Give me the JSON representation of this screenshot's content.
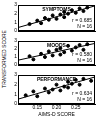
{
  "chart_data": [
    {
      "type": "scatter",
      "title": "SYMPTOMS",
      "annotations": [
        "r = 0.685",
        "N = 16"
      ],
      "xlim": [
        0.1,
        0.3
      ],
      "xticks": [
        0.15,
        {
          "value": 0.2,
          "label": "0.20"
        },
        0.25
      ],
      "ylim": [
        0,
        3
      ],
      "yticks": [
        0,
        1,
        2,
        3
      ],
      "grid": false,
      "tick_labels": "y",
      "series": [
        {
          "color": "#000000",
          "marker": "circle",
          "x": [
            0.13,
            0.15,
            0.16,
            0.17,
            0.18,
            0.19,
            0.2,
            0.21,
            0.22,
            0.22,
            0.23,
            0.24,
            0.25,
            0.26,
            0.27,
            0.28
          ],
          "values": [
            0.8,
            1.2,
            0.9,
            1.5,
            1.3,
            1.8,
            1.4,
            1.9,
            1.6,
            2.2,
            2.0,
            2.4,
            2.1,
            2.6,
            2.3,
            2.7
          ]
        },
        {
          "type": "line",
          "color": "#000000",
          "line_style": "solid",
          "x": [
            0.1,
            0.3
          ],
          "values": [
            0.4,
            2.9
          ]
        }
      ]
    },
    {
      "type": "scatter",
      "title": "MOODS",
      "annotations": [
        "r = 0.580",
        "N = 16"
      ],
      "y_label": "TRANSFORMED SCORE",
      "xlim": [
        0.1,
        0.3
      ],
      "xticks": [
        0.15,
        {
          "value": 0.2,
          "label": "0.20"
        },
        0.25
      ],
      "ylim": [
        0,
        3
      ],
      "yticks": [
        0,
        1,
        2,
        3
      ],
      "grid": false,
      "tick_labels": "y",
      "series": [
        {
          "color": "#000000",
          "marker": "circle",
          "x": [
            0.13,
            0.14,
            0.16,
            0.17,
            0.18,
            0.19,
            0.2,
            0.21,
            0.21,
            0.22,
            0.23,
            0.24,
            0.25,
            0.26,
            0.27,
            0.28
          ],
          "values": [
            1.1,
            0.7,
            1.4,
            1.0,
            1.7,
            1.2,
            1.9,
            1.3,
            2.1,
            1.6,
            2.4,
            1.8,
            2.2,
            2.5,
            1.9,
            2.6
          ]
        },
        {
          "type": "line",
          "color": "#000000",
          "line_style": "solid",
          "x": [
            0.1,
            0.3
          ],
          "values": [
            0.6,
            2.7
          ]
        }
      ]
    },
    {
      "type": "scatter",
      "title": "PERFORMANCE",
      "annotations": [
        "r = 0.634",
        "N = 16"
      ],
      "x_label": "AIMS-D SCORE",
      "xlim": [
        0.1,
        0.3
      ],
      "xticks": [
        0.15,
        {
          "value": 0.2,
          "label": "0.20"
        },
        0.25
      ],
      "ylim": [
        0,
        3
      ],
      "yticks": [
        0,
        1,
        2,
        3
      ],
      "grid": false,
      "series": [
        {
          "color": "#000000",
          "marker": "circle",
          "x": [
            0.12,
            0.14,
            0.15,
            0.17,
            0.18,
            0.19,
            0.2,
            0.21,
            0.22,
            0.23,
            0.23,
            0.24,
            0.25,
            0.26,
            0.27,
            0.29
          ],
          "values": [
            0.9,
            1.3,
            0.8,
            1.6,
            1.2,
            1.5,
            2.0,
            1.4,
            1.8,
            2.3,
            1.7,
            2.1,
            2.5,
            2.0,
            2.6,
            2.4
          ]
        },
        {
          "type": "line",
          "color": "#000000",
          "line_style": "solid",
          "x": [
            0.1,
            0.3
          ],
          "values": [
            0.5,
            2.8
          ]
        }
      ]
    }
  ]
}
